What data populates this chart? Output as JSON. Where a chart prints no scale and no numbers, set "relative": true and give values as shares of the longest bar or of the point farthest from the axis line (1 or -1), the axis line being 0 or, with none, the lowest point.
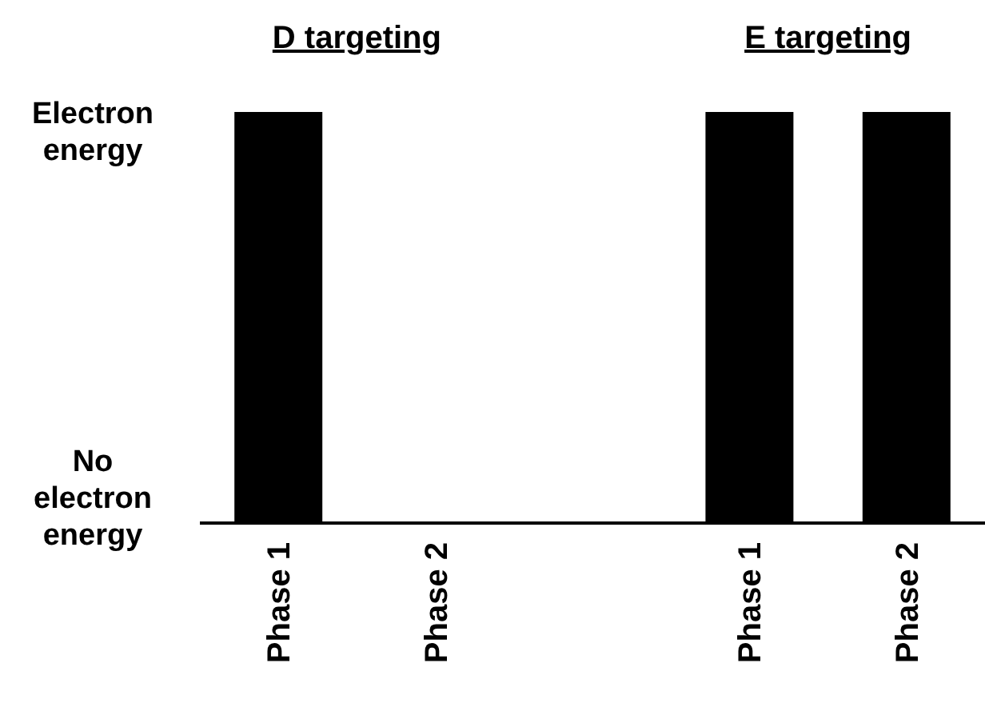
{
  "chart_data": {
    "type": "bar",
    "categories": [
      "Phase 1",
      "Phase 2",
      null,
      "Phase 1",
      "Phase 2"
    ],
    "values": [
      1,
      0,
      null,
      1,
      1
    ],
    "color": "#000000",
    "relative": true,
    "annotations": [
      "D targeting",
      "E targeting",
      "Electron energy",
      "No electron energy"
    ]
  }
}
